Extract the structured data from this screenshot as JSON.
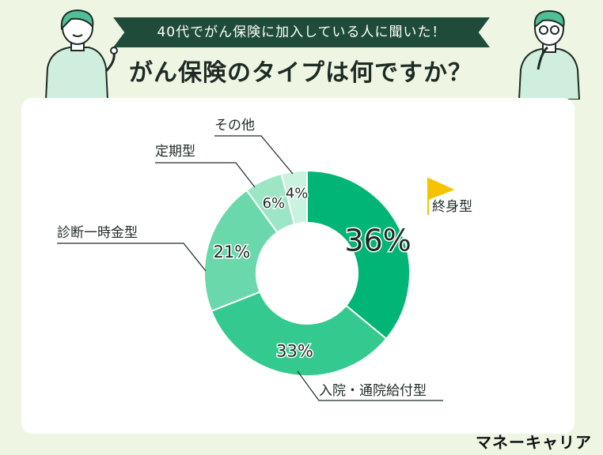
{
  "header": {
    "banner": "40代でがん保険に加入している人に聞いた！",
    "title": "がん保険のタイプは何ですか？"
  },
  "brand": "マネーキャリア",
  "chart_data": {
    "type": "pie",
    "donut": true,
    "slices": [
      {
        "label": "終身型",
        "value": 36,
        "display": "36%",
        "color": "#00b576"
      },
      {
        "label": "入院・通院給付型",
        "value": 33,
        "display": "33%",
        "color": "#33c98f"
      },
      {
        "label": "診断一時金型",
        "value": 21,
        "display": "21%",
        "color": "#6ad8ab"
      },
      {
        "label": "定期型",
        "value": 6,
        "display": "6%",
        "color": "#9ce6c5"
      },
      {
        "label": "その他",
        "value": 4,
        "display": "4%",
        "color": "#c9f2df"
      }
    ]
  }
}
